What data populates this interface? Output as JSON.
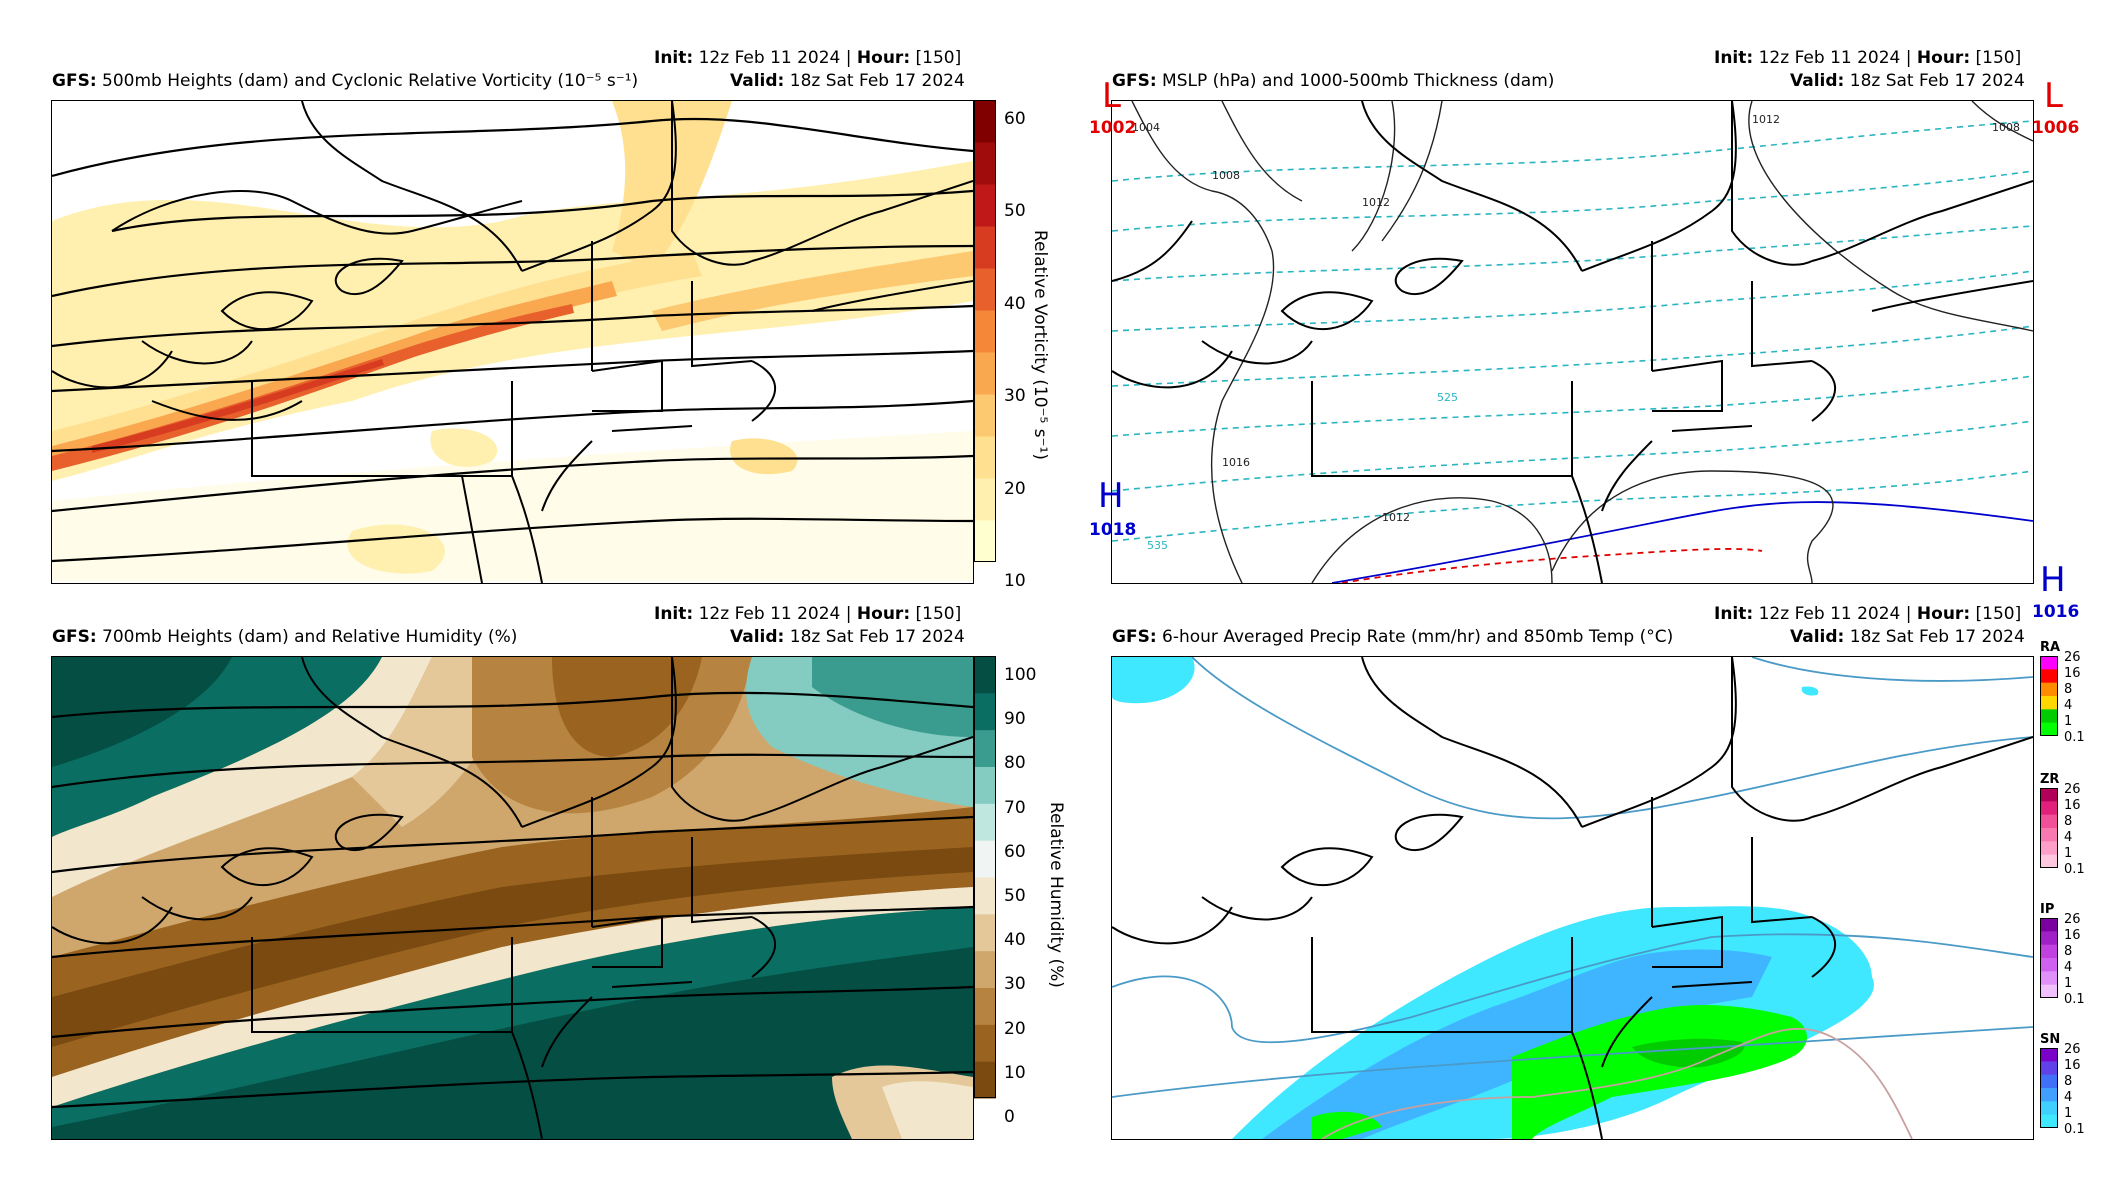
{
  "panels": {
    "vort": {
      "model": "GFS",
      "title": "500mb Heights (dam) and Cyclonic Relative Vorticity (10⁻⁵ s⁻¹)",
      "init_label": "Init",
      "init_value": "12z Feb 11 2024",
      "hour_label": "Hour",
      "hour_value": "[150]",
      "valid_label": "Valid",
      "valid_value": "18z Sat Feb 17 2024",
      "colorbar": {
        "label": "Relative Vorticity (10⁻⁵ s⁻¹)",
        "ticks": [
          "10",
          "20",
          "30",
          "40",
          "50",
          "60"
        ]
      }
    },
    "mslp": {
      "model": "GFS",
      "title": "MSLP (hPa) and 1000-500mb Thickness (dam)",
      "init_label": "Init",
      "init_value": "12z Feb 11 2024",
      "hour_label": "Hour",
      "hour_value": "[150]",
      "valid_label": "Valid",
      "valid_value": "18z Sat Feb 17 2024",
      "centers": [
        {
          "type": "L",
          "value": "1002",
          "color": "#e00000"
        },
        {
          "type": "L",
          "value": "1006",
          "color": "#e00000"
        },
        {
          "type": "H",
          "value": "1018",
          "color": "#0000cc"
        },
        {
          "type": "H",
          "value": "1016",
          "color": "#0000cc"
        }
      ],
      "contour_labels": [
        "1004",
        "1008",
        "1012",
        "1016",
        "1012",
        "1012",
        "1008",
        "525",
        "535"
      ]
    },
    "rh": {
      "model": "GFS",
      "title": "700mb Heights (dam) and Relative Humidity (%)",
      "init_label": "Init",
      "init_value": "12z Feb 11 2024",
      "hour_label": "Hour",
      "hour_value": "[150]",
      "valid_label": "Valid",
      "valid_value": "18z Sat Feb 17 2024",
      "colorbar": {
        "label": "Relative Humidity (%)",
        "ticks": [
          "0",
          "10",
          "20",
          "30",
          "40",
          "50",
          "60",
          "70",
          "80",
          "90",
          "100"
        ]
      }
    },
    "precip": {
      "model": "GFS",
      "title": "6-hour Averaged Precip Rate (mm/hr) and 850mb Temp (°C)",
      "init_label": "Init",
      "init_value": "12z Feb 11 2024",
      "hour_label": "Hour",
      "hour_value": "[150]",
      "valid_label": "Valid",
      "valid_value": "18z Sat Feb 17 2024",
      "legends": [
        {
          "title": "RA",
          "ticks": [
            "26",
            "16",
            "8",
            "4",
            "1",
            "0.1"
          ],
          "colors": [
            "#ff00ff",
            "#ff0000",
            "#ff8c00",
            "#ffd700",
            "#00cc00",
            "#00ff00"
          ]
        },
        {
          "title": "ZR",
          "ticks": [
            "26",
            "16",
            "8",
            "4",
            "1",
            "0.1"
          ],
          "colors": [
            "#b0005a",
            "#e0207a",
            "#f05098",
            "#f878b0",
            "#fca0c8",
            "#ffc8e0"
          ]
        },
        {
          "title": "IP",
          "ticks": [
            "26",
            "16",
            "8",
            "4",
            "1",
            "0.1"
          ],
          "colors": [
            "#7a00a0",
            "#a020c8",
            "#c040e0",
            "#d060f0",
            "#e090f8",
            "#f0c0ff"
          ]
        },
        {
          "title": "SN",
          "ticks": [
            "26",
            "16",
            "8",
            "4",
            "1",
            "0.1"
          ],
          "colors": [
            "#7b00c8",
            "#6040e8",
            "#4070f8",
            "#40a0ff",
            "#40d0ff",
            "#40e8ff"
          ]
        }
      ]
    }
  },
  "colors": {
    "vort_scale": [
      "#ffffd0",
      "#fff0b0",
      "#ffe090",
      "#fcc870",
      "#f9a850",
      "#f48838",
      "#e8602c",
      "#d83c20",
      "#c01818",
      "#a00c0c",
      "#800000"
    ],
    "rh_scale": [
      "#7a4a10",
      "#9a6420",
      "#b68440",
      "#cfa76c",
      "#e4c89a",
      "#f2e6cc",
      "#f0f4f2",
      "#c0e6e0",
      "#84cbc2",
      "#3a9c8e",
      "#0a6e62",
      "#044e44"
    ]
  }
}
